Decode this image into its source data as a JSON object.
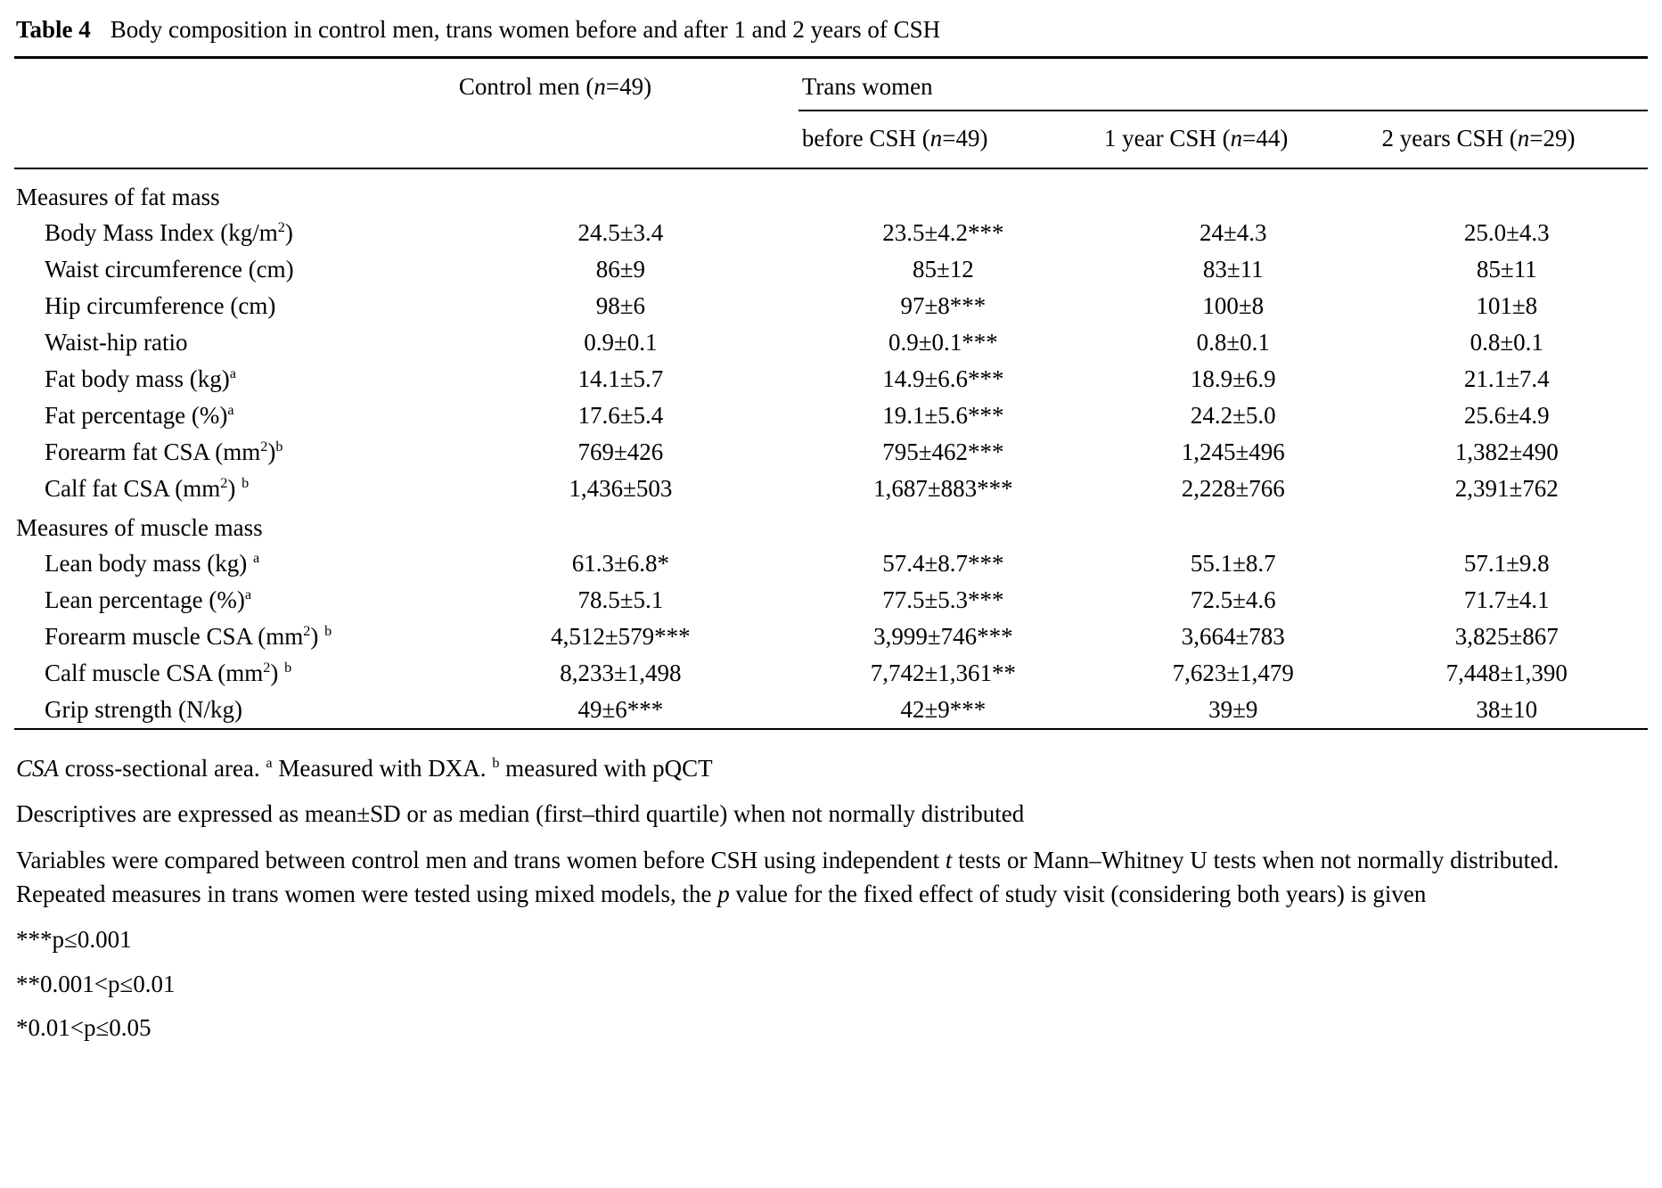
{
  "caption": {
    "label": "Table 4",
    "text": "Body composition in control men, trans women before and after 1 and 2 years of CSH"
  },
  "table": {
    "header": {
      "control": [
        {
          "t": "Control men ("
        },
        {
          "t": "n",
          "i": true
        },
        {
          "t": "=49)"
        }
      ],
      "trans_group": [
        {
          "t": "Trans women"
        }
      ],
      "sub_headers": [
        [
          {
            "t": "before CSH ("
          },
          {
            "t": "n",
            "i": true
          },
          {
            "t": "=49)"
          }
        ],
        [
          {
            "t": "1 year CSH ("
          },
          {
            "t": "n",
            "i": true
          },
          {
            "t": "=44)"
          }
        ],
        [
          {
            "t": "2 years CSH ("
          },
          {
            "t": "n",
            "i": true
          },
          {
            "t": "=29)"
          }
        ]
      ]
    },
    "sections": [
      {
        "name": "Measures of fat mass",
        "rows": [
          {
            "label": [
              {
                "t": "Body Mass Index (kg/m"
              },
              {
                "t": "2",
                "sup": true
              },
              {
                "t": ")"
              }
            ],
            "values": [
              "24.5±3.4",
              "23.5±4.2***",
              "24±4.3",
              "25.0±4.3"
            ]
          },
          {
            "label": [
              {
                "t": "Waist circumference (cm)"
              }
            ],
            "values": [
              "86±9",
              "85±12",
              "83±11",
              "85±11"
            ]
          },
          {
            "label": [
              {
                "t": "Hip circumference (cm)"
              }
            ],
            "values": [
              "98±6",
              "97±8***",
              "100±8",
              "101±8"
            ]
          },
          {
            "label": [
              {
                "t": "Waist-hip ratio"
              }
            ],
            "values": [
              "0.9±0.1",
              "0.9±0.1***",
              "0.8±0.1",
              "0.8±0.1"
            ]
          },
          {
            "label": [
              {
                "t": "Fat body mass (kg)"
              },
              {
                "t": "a",
                "sup": true
              }
            ],
            "values": [
              "14.1±5.7",
              "14.9±6.6***",
              "18.9±6.9",
              "21.1±7.4"
            ]
          },
          {
            "label": [
              {
                "t": "Fat percentage (%)"
              },
              {
                "t": "a",
                "sup": true
              }
            ],
            "values": [
              "17.6±5.4",
              "19.1±5.6***",
              "24.2±5.0",
              "25.6±4.9"
            ]
          },
          {
            "label": [
              {
                "t": "Forearm fat CSA (mm"
              },
              {
                "t": "2",
                "sup": true
              },
              {
                "t": ")"
              },
              {
                "t": "b",
                "sup": true
              }
            ],
            "values": [
              "769±426",
              "795±462***",
              "1,245±496",
              "1,382±490"
            ]
          },
          {
            "label": [
              {
                "t": "Calf fat CSA (mm"
              },
              {
                "t": "2",
                "sup": true
              },
              {
                "t": ") "
              },
              {
                "t": "b",
                "sup": true
              }
            ],
            "values": [
              "1,436±503",
              "1,687±883***",
              "2,228±766",
              "2,391±762"
            ]
          }
        ]
      },
      {
        "name": "Measures of muscle mass",
        "rows": [
          {
            "label": [
              {
                "t": "Lean body mass (kg) "
              },
              {
                "t": "a",
                "sup": true
              }
            ],
            "values": [
              "61.3±6.8*",
              "57.4±8.7***",
              "55.1±8.7",
              "57.1±9.8"
            ]
          },
          {
            "label": [
              {
                "t": "Lean percentage (%)"
              },
              {
                "t": "a",
                "sup": true
              }
            ],
            "values": [
              "78.5±5.1",
              "77.5±5.3***",
              "72.5±4.6",
              "71.7±4.1"
            ]
          },
          {
            "label": [
              {
                "t": "Forearm muscle CSA (mm"
              },
              {
                "t": "2",
                "sup": true
              },
              {
                "t": ") "
              },
              {
                "t": "b",
                "sup": true
              }
            ],
            "values": [
              "4,512±579***",
              "3,999±746***",
              "3,664±783",
              "3,825±867"
            ]
          },
          {
            "label": [
              {
                "t": "Calf muscle CSA (mm"
              },
              {
                "t": "2",
                "sup": true
              },
              {
                "t": ") "
              },
              {
                "t": "b",
                "sup": true
              }
            ],
            "values": [
              "8,233±1,498",
              "7,742±1,361**",
              "7,623±1,479",
              "7,448±1,390"
            ]
          },
          {
            "label": [
              {
                "t": "Grip strength (N/kg)"
              }
            ],
            "values": [
              "49±6***",
              "42±9***",
              "39±9",
              "38±10"
            ]
          }
        ]
      }
    ]
  },
  "footnotes": [
    [
      {
        "t": "CSA",
        "i": true
      },
      {
        "t": " cross-sectional area. "
      },
      {
        "t": "a",
        "sup": true
      },
      {
        "t": " Measured with DXA. "
      },
      {
        "t": "b",
        "sup": true
      },
      {
        "t": " measured with pQCT"
      }
    ],
    [
      {
        "t": "Descriptives are expressed as mean±SD or as median (first–third quartile) when not normally distributed"
      }
    ],
    [
      {
        "t": "Variables were compared between control men and trans women before CSH using independent "
      },
      {
        "t": "t",
        "i": true
      },
      {
        "t": " tests or Mann–Whitney U tests when not normally distributed. Repeated measures in trans women were tested using mixed models, the "
      },
      {
        "t": "p",
        "i": true
      },
      {
        "t": " value for the fixed effect of study visit (considering both years) is given"
      }
    ],
    [
      {
        "t": "***p≤0.001"
      }
    ],
    [
      {
        "t": "**0.001<p≤0.01"
      }
    ],
    [
      {
        "t": "*0.01<p≤0.05"
      }
    ]
  ]
}
